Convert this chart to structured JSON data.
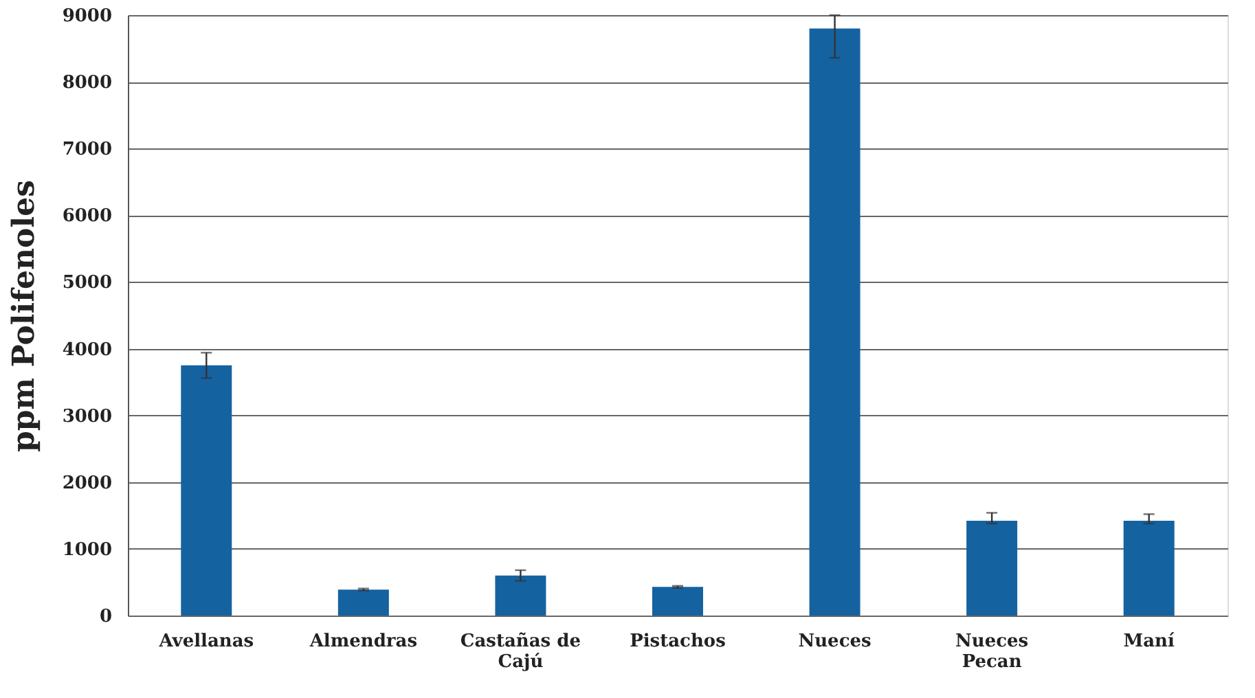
{
  "chart_data": {
    "type": "bar",
    "ylabel": "ppm Polifenoles",
    "categories": [
      "Avellanas",
      "Almendras",
      "Castañas de Cajú",
      "Pistachos",
      "Nueces",
      "Nueces Pecan",
      "Maní"
    ],
    "values": [
      3750,
      390,
      600,
      430,
      8800,
      1420,
      1420
    ],
    "errors": [
      190,
      15,
      80,
      15,
      [
        8360,
        9000
      ],
      [
        1380,
        1540
      ],
      [
        1380,
        1520
      ]
    ],
    "color": "#1562a0",
    "ylim": [
      0,
      9000
    ],
    "yticks": [
      0,
      1000,
      2000,
      3000,
      4000,
      5000,
      6000,
      7000,
      8000,
      9000
    ],
    "grid": "y"
  }
}
